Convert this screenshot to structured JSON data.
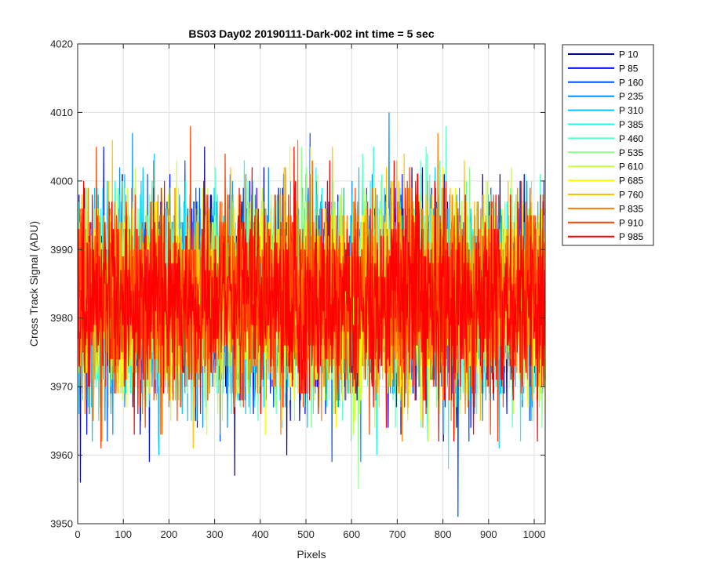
{
  "chart_data": {
    "type": "line",
    "title": "BS03 Day02 20190111-Dark-002 int time = 5 sec",
    "xlabel": "Pixels",
    "ylabel": "Cross Track Signal (ADU)",
    "xlim": [
      0,
      1024
    ],
    "ylim": [
      3950,
      4020
    ],
    "xticks": [
      0,
      100,
      200,
      300,
      400,
      500,
      600,
      700,
      800,
      900,
      1000
    ],
    "yticks": [
      3950,
      3960,
      3970,
      3980,
      3990,
      4000,
      4010,
      4020
    ],
    "grid": true,
    "legend_position": "outside-top-right",
    "noise": {
      "mean": 3983,
      "std": 7,
      "n_points": 1024
    },
    "series": [
      {
        "name": "P 10",
        "color": "#00008f"
      },
      {
        "name": "P 85",
        "color": "#0010ff"
      },
      {
        "name": "P 160",
        "color": "#0050ff"
      },
      {
        "name": "P 235",
        "color": "#0090ff"
      },
      {
        "name": "P 310",
        "color": "#00c8ff"
      },
      {
        "name": "P 385",
        "color": "#20f5f5"
      },
      {
        "name": "P 460",
        "color": "#5affc8"
      },
      {
        "name": "P 535",
        "color": "#8cff8c"
      },
      {
        "name": "P 610",
        "color": "#c8ff40"
      },
      {
        "name": "P 685",
        "color": "#ffff00"
      },
      {
        "name": "P 760",
        "color": "#ffc000"
      },
      {
        "name": "P 835",
        "color": "#ff8000"
      },
      {
        "name": "P 910",
        "color": "#ff4000"
      },
      {
        "name": "P 985",
        "color": "#ff0000"
      }
    ]
  }
}
